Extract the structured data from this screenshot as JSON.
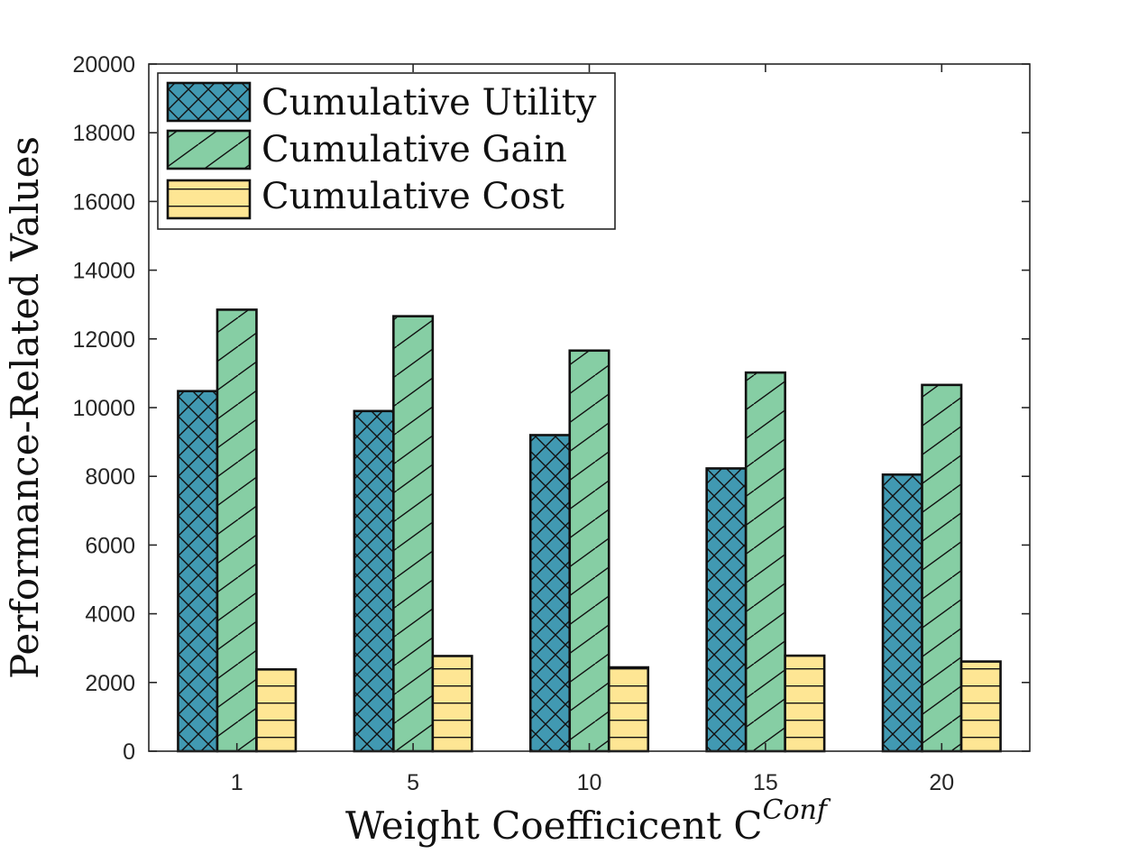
{
  "chart_data": {
    "type": "bar",
    "title": "",
    "categories": [
      "1",
      "5",
      "10",
      "15",
      "20"
    ],
    "series": [
      {
        "name": "Cumulative Utility",
        "values": [
          10480,
          9900,
          9200,
          8230,
          8050
        ],
        "color": "#4199b2",
        "pattern": "crosshatch"
      },
      {
        "name": "Cumulative Gain",
        "values": [
          12850,
          12660,
          11660,
          11020,
          10660
        ],
        "color": "#86cea4",
        "pattern": "diagonal"
      },
      {
        "name": "Cumulative Cost",
        "values": [
          2380,
          2770,
          2440,
          2780,
          2610
        ],
        "color": "#fee694",
        "pattern": "horizontal"
      }
    ],
    "xlabel": "Weight Coefficicent C",
    "xlabel_superscript": "Conf",
    "ylabel": "Performance-Related Values",
    "ylim": [
      0,
      20000
    ],
    "yticks": [
      0,
      2000,
      4000,
      6000,
      8000,
      10000,
      12000,
      14000,
      16000,
      18000,
      20000
    ],
    "grid": false,
    "legend_position": "top-left"
  }
}
